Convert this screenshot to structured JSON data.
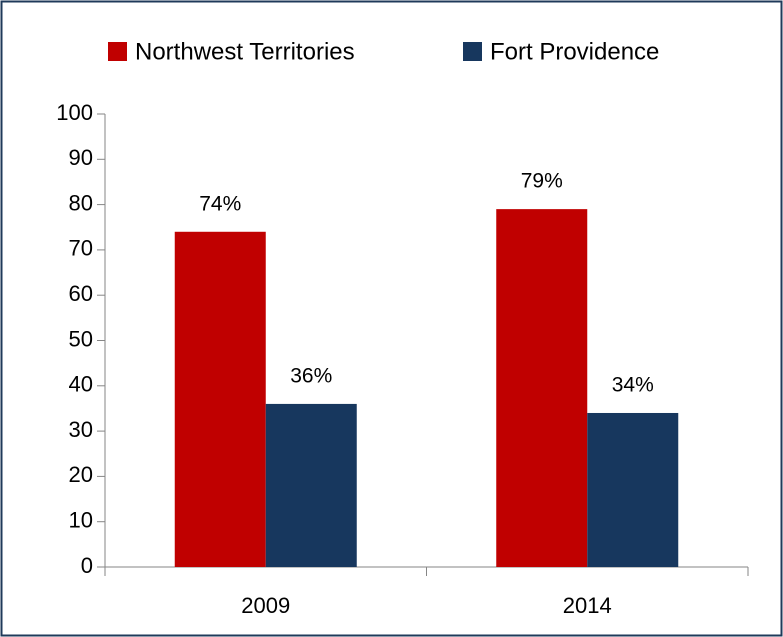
{
  "chart_data": {
    "type": "bar",
    "categories": [
      "2009",
      "2014"
    ],
    "series": [
      {
        "name": "Northwest Territories",
        "color": "#c00000",
        "values": [
          74,
          79
        ],
        "value_labels": [
          "74%",
          "79%"
        ]
      },
      {
        "name": "Fort Providence",
        "color": "#17375e",
        "values": [
          36,
          34
        ],
        "value_labels": [
          "36%",
          "34%"
        ]
      }
    ],
    "ylim": [
      0,
      100
    ],
    "yticks": [
      0,
      10,
      20,
      30,
      40,
      50,
      60,
      70,
      80,
      90,
      100
    ],
    "legend": "top",
    "grid": false
  }
}
